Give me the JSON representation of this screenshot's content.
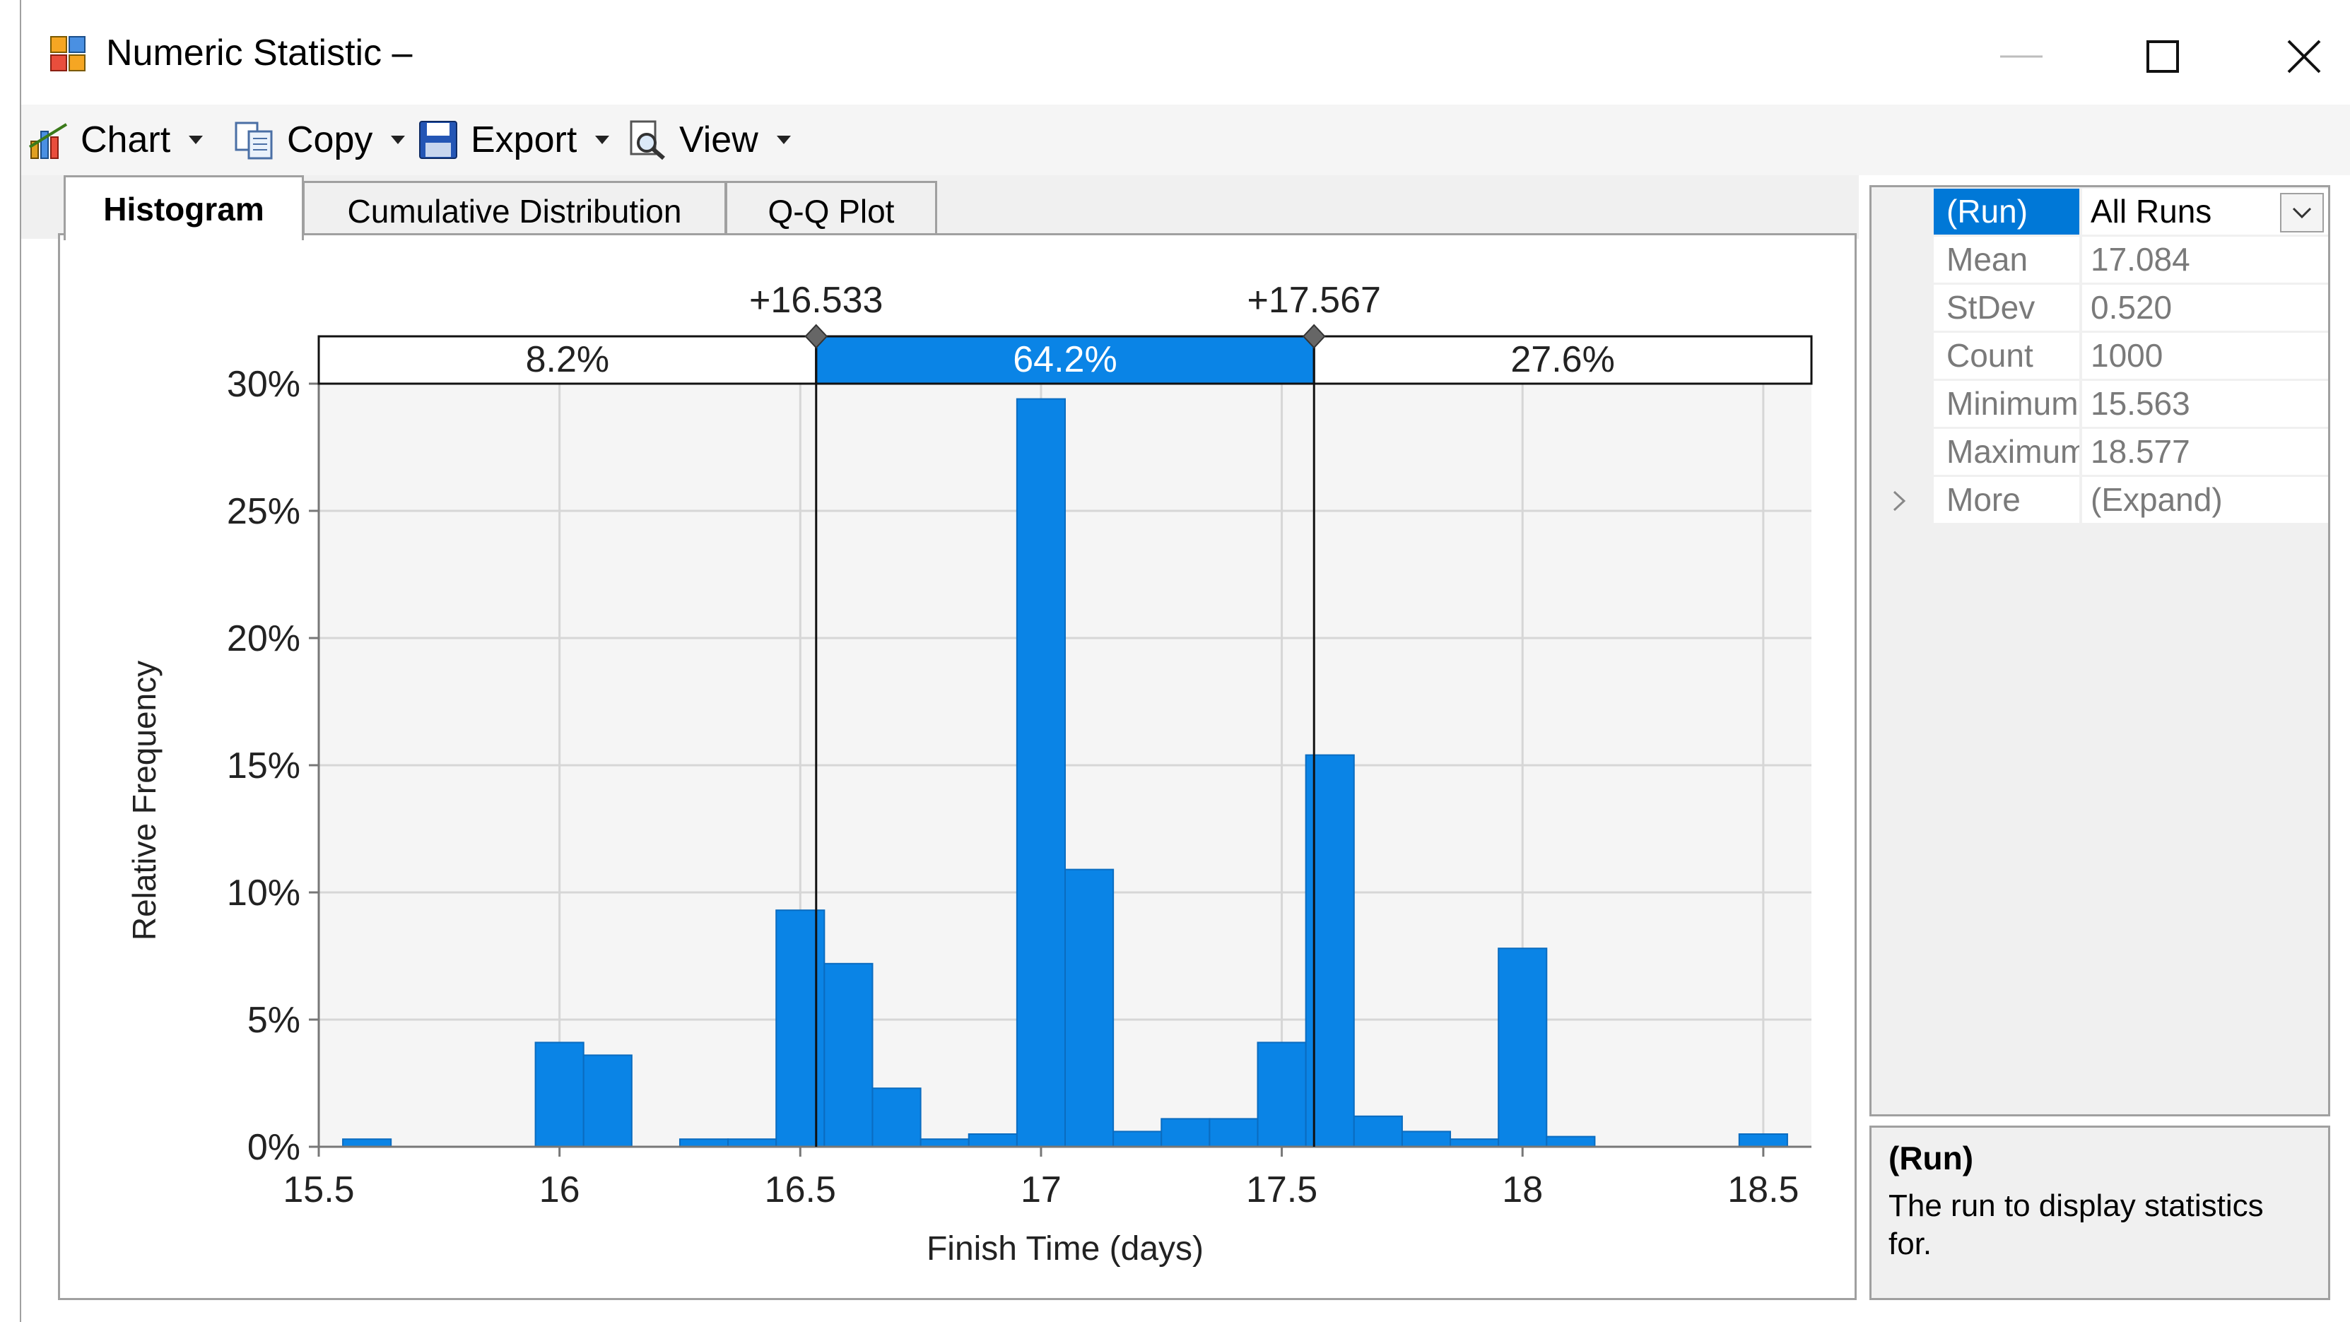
{
  "window": {
    "title": "Numeric Statistic –",
    "app_icon": "statistic-app-icon",
    "controls": {
      "minimize": "minimize-icon",
      "maximize": "maximize-icon",
      "close": "close-icon"
    }
  },
  "toolbar": {
    "chart_label": "Chart",
    "copy_label": "Copy",
    "export_label": "Export",
    "view_label": "View"
  },
  "tabs": [
    {
      "label": "Histogram",
      "active": true
    },
    {
      "label": "Cumulative Distribution",
      "active": false
    },
    {
      "label": "Q-Q Plot",
      "active": false
    }
  ],
  "chart_data": {
    "type": "bar",
    "xlabel": "Finish Time (days)",
    "ylabel": "Relative Frequency",
    "xlim": [
      15.5,
      18.6
    ],
    "ylim": [
      0,
      30
    ],
    "x_ticks": [
      15.5,
      16,
      16.5,
      17,
      17.5,
      18,
      18.5
    ],
    "x_tick_labels": [
      "15.5",
      "16",
      "16.5",
      "17",
      "17.5",
      "18",
      "18.5"
    ],
    "y_ticks": [
      0,
      5,
      10,
      15,
      20,
      25,
      30
    ],
    "y_tick_labels": [
      "0%",
      "5%",
      "10%",
      "15%",
      "20%",
      "25%",
      "30%"
    ],
    "grid": true,
    "bar_color": "#0a84e6",
    "bin_width": 0.1,
    "bin_starts": [
      15.55,
      15.95,
      16.05,
      16.25,
      16.35,
      16.45,
      16.55,
      16.65,
      16.75,
      16.85,
      16.95,
      17.05,
      17.15,
      17.25,
      17.35,
      17.45,
      17.55,
      17.65,
      17.75,
      17.85,
      17.95,
      18.05,
      18.45
    ],
    "values": [
      0.3,
      4.1,
      3.6,
      0.3,
      0.3,
      9.3,
      7.2,
      2.3,
      0.3,
      0.5,
      29.4,
      10.9,
      0.6,
      1.1,
      1.1,
      4.1,
      15.4,
      1.2,
      0.6,
      0.3,
      7.8,
      0.4,
      0.5
    ],
    "markers": [
      {
        "x": 16.533,
        "label": "+16.533"
      },
      {
        "x": 17.567,
        "label": "+17.567"
      }
    ],
    "regions": [
      {
        "label": "8.2%",
        "highlight": false
      },
      {
        "label": "64.2%",
        "highlight": true
      },
      {
        "label": "27.6%",
        "highlight": false
      }
    ],
    "highlight_color": "#0a84e6"
  },
  "property_grid": {
    "rows": [
      {
        "name": "(Run)",
        "value": "All Runs",
        "selected": true
      },
      {
        "name": "Mean",
        "value": "17.084"
      },
      {
        "name": "StDev",
        "value": "0.520"
      },
      {
        "name": "Count",
        "value": "1000"
      },
      {
        "name": "Minimum",
        "value": "15.563"
      },
      {
        "name": "Maximum",
        "value": "18.577"
      },
      {
        "name": "More",
        "value": "(Expand)"
      }
    ]
  },
  "description": {
    "title": "(Run)",
    "text": "The run to display statistics for."
  }
}
